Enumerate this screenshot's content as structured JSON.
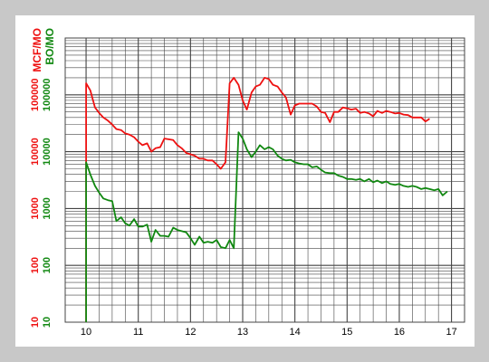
{
  "colors": {
    "background": "#c8c8c8",
    "panel": "#ffffff",
    "gas": "#ee1111",
    "oil": "#118811",
    "grid": "#444444"
  },
  "chart_data": {
    "type": "line",
    "scale_y": "log",
    "ylim": [
      10,
      1000000
    ],
    "xlim": [
      9.6,
      17.25
    ],
    "grid": true,
    "y_axis_labels": [
      "MCF/MO",
      "BO/MO"
    ],
    "x_ticks": [
      "10",
      "11",
      "12",
      "13",
      "14",
      "15",
      "16",
      "17"
    ],
    "y_ticks": [
      "10",
      "100",
      "1000",
      "10000",
      "100000"
    ],
    "series": [
      {
        "name": "MCF/MO",
        "color": "#ee1111",
        "points": [
          [
            10.0,
            10
          ],
          [
            10.0,
            160000
          ],
          [
            10.08,
            120000
          ],
          [
            10.17,
            60000
          ],
          [
            10.25,
            48000
          ],
          [
            10.33,
            40000
          ],
          [
            10.42,
            35000
          ],
          [
            10.5,
            30000
          ],
          [
            10.58,
            25000
          ],
          [
            10.67,
            24000
          ],
          [
            10.75,
            21000
          ],
          [
            10.83,
            20000
          ],
          [
            10.92,
            18000
          ],
          [
            11.0,
            15000
          ],
          [
            11.08,
            13000
          ],
          [
            11.17,
            14000
          ],
          [
            11.25,
            10000
          ],
          [
            11.33,
            11500
          ],
          [
            11.42,
            12000
          ],
          [
            11.5,
            17000
          ],
          [
            11.58,
            16500
          ],
          [
            11.67,
            16000
          ],
          [
            11.75,
            13000
          ],
          [
            11.83,
            11500
          ],
          [
            11.92,
            9500
          ],
          [
            12.0,
            9000
          ],
          [
            12.08,
            8500
          ],
          [
            12.17,
            7500
          ],
          [
            12.25,
            7500
          ],
          [
            12.33,
            7000
          ],
          [
            12.42,
            7000
          ],
          [
            12.5,
            6000
          ],
          [
            12.58,
            5000
          ],
          [
            12.67,
            6500
          ],
          [
            12.75,
            160000
          ],
          [
            12.83,
            200000
          ],
          [
            12.92,
            150000
          ],
          [
            13.0,
            80000
          ],
          [
            13.08,
            55000
          ],
          [
            13.17,
            110000
          ],
          [
            13.25,
            140000
          ],
          [
            13.33,
            150000
          ],
          [
            13.42,
            200000
          ],
          [
            13.5,
            190000
          ],
          [
            13.58,
            150000
          ],
          [
            13.67,
            140000
          ],
          [
            13.75,
            110000
          ],
          [
            13.83,
            90000
          ],
          [
            13.92,
            45000
          ],
          [
            14.0,
            65000
          ],
          [
            14.08,
            70000
          ],
          [
            14.17,
            70000
          ],
          [
            14.25,
            70000
          ],
          [
            14.33,
            70000
          ],
          [
            14.42,
            62000
          ],
          [
            14.5,
            50000
          ],
          [
            14.58,
            48000
          ],
          [
            14.67,
            33000
          ],
          [
            14.75,
            50000
          ],
          [
            14.83,
            50000
          ],
          [
            14.92,
            60000
          ],
          [
            15.0,
            58000
          ],
          [
            15.08,
            55000
          ],
          [
            15.17,
            57000
          ],
          [
            15.25,
            48000
          ],
          [
            15.33,
            50000
          ],
          [
            15.42,
            47000
          ],
          [
            15.5,
            42000
          ],
          [
            15.58,
            52000
          ],
          [
            15.67,
            48000
          ],
          [
            15.75,
            52000
          ],
          [
            15.83,
            50000
          ],
          [
            15.92,
            47000
          ],
          [
            16.0,
            48000
          ],
          [
            16.08,
            45000
          ],
          [
            16.17,
            44000
          ],
          [
            16.25,
            40000
          ],
          [
            16.33,
            40000
          ],
          [
            16.42,
            40000
          ],
          [
            16.5,
            34000
          ],
          [
            16.58,
            38000
          ]
        ]
      },
      {
        "name": "BO/MO",
        "color": "#118811",
        "points": [
          [
            10.0,
            10
          ],
          [
            10.0,
            6500
          ],
          [
            10.08,
            4000
          ],
          [
            10.17,
            2500
          ],
          [
            10.25,
            1900
          ],
          [
            10.33,
            1500
          ],
          [
            10.42,
            1400
          ],
          [
            10.5,
            1350
          ],
          [
            10.58,
            600
          ],
          [
            10.67,
            700
          ],
          [
            10.75,
            550
          ],
          [
            10.83,
            500
          ],
          [
            10.92,
            650
          ],
          [
            11.0,
            480
          ],
          [
            11.08,
            480
          ],
          [
            11.17,
            520
          ],
          [
            11.25,
            260
          ],
          [
            11.33,
            420
          ],
          [
            11.42,
            330
          ],
          [
            11.5,
            330
          ],
          [
            11.58,
            320
          ],
          [
            11.67,
            460
          ],
          [
            11.75,
            420
          ],
          [
            11.83,
            400
          ],
          [
            11.92,
            380
          ],
          [
            12.0,
            300
          ],
          [
            12.08,
            230
          ],
          [
            12.17,
            320
          ],
          [
            12.25,
            250
          ],
          [
            12.33,
            260
          ],
          [
            12.42,
            250
          ],
          [
            12.5,
            280
          ],
          [
            12.58,
            210
          ],
          [
            12.67,
            200
          ],
          [
            12.75,
            280
          ],
          [
            12.83,
            200
          ],
          [
            12.92,
            22000
          ],
          [
            13.0,
            17000
          ],
          [
            13.08,
            11000
          ],
          [
            13.17,
            8000
          ],
          [
            13.25,
            10000
          ],
          [
            13.33,
            13000
          ],
          [
            13.42,
            11000
          ],
          [
            13.5,
            12000
          ],
          [
            13.58,
            11000
          ],
          [
            13.67,
            8500
          ],
          [
            13.75,
            7500
          ],
          [
            13.83,
            7000
          ],
          [
            13.92,
            7200
          ],
          [
            14.0,
            6500
          ],
          [
            14.08,
            6200
          ],
          [
            14.17,
            6000
          ],
          [
            14.25,
            6000
          ],
          [
            14.33,
            5300
          ],
          [
            14.42,
            5500
          ],
          [
            14.5,
            4800
          ],
          [
            14.58,
            4300
          ],
          [
            14.67,
            4200
          ],
          [
            14.75,
            4200
          ],
          [
            14.83,
            3800
          ],
          [
            14.92,
            3600
          ],
          [
            15.0,
            3300
          ],
          [
            15.08,
            3300
          ],
          [
            15.17,
            3200
          ],
          [
            15.25,
            3300
          ],
          [
            15.33,
            3000
          ],
          [
            15.42,
            3300
          ],
          [
            15.5,
            2900
          ],
          [
            15.58,
            3100
          ],
          [
            15.67,
            2800
          ],
          [
            15.75,
            3000
          ],
          [
            15.83,
            2700
          ],
          [
            15.92,
            2600
          ],
          [
            16.0,
            2700
          ],
          [
            16.08,
            2500
          ],
          [
            16.17,
            2400
          ],
          [
            16.25,
            2500
          ],
          [
            16.33,
            2400
          ],
          [
            16.42,
            2200
          ],
          [
            16.5,
            2300
          ],
          [
            16.58,
            2200
          ],
          [
            16.67,
            2100
          ],
          [
            16.75,
            2200
          ],
          [
            16.83,
            1700
          ],
          [
            16.92,
            2000
          ]
        ]
      }
    ]
  }
}
